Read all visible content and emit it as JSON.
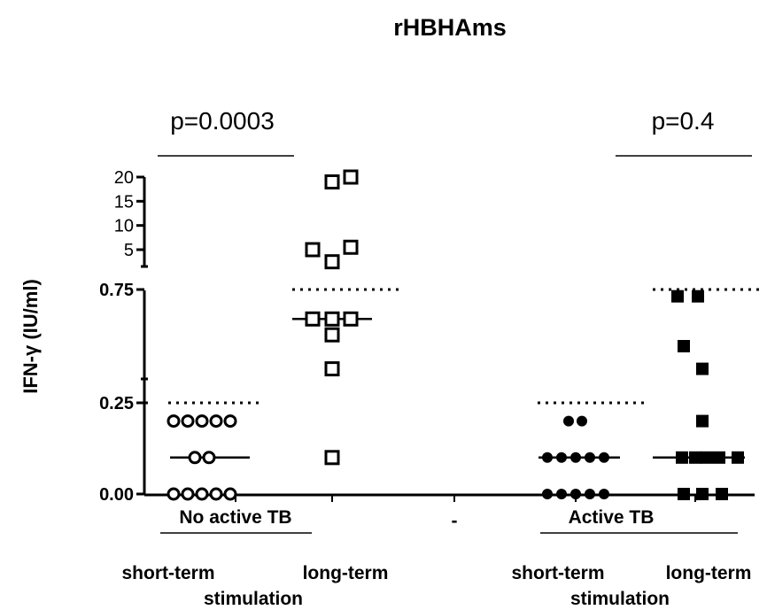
{
  "chart_data": {
    "type": "scatter",
    "title": "rHBHAms",
    "ylabel": "IFN-γ (IU/ml)",
    "y_axis_segments": [
      {
        "ticks": [
          "0.00",
          "0.25"
        ],
        "range": [
          0,
          0.25
        ]
      },
      {
        "ticks": [
          "0.75"
        ],
        "range": [
          0.25,
          0.75
        ]
      },
      {
        "ticks": [
          "5",
          "10",
          "15",
          "20"
        ],
        "range": [
          0,
          20
        ]
      }
    ],
    "groups": [
      {
        "label": "No active TB",
        "p_value": "p=0.0003",
        "conditions": [
          {
            "label": "short-term",
            "marker": "open-circle",
            "median": 0.1,
            "cutoff": 0.25,
            "values": [
              0.2,
              0.2,
              0.2,
              0.2,
              0.2,
              0.1,
              0.1,
              0.0,
              0.0,
              0.0,
              0.0,
              0.0
            ]
          },
          {
            "label": "long-term",
            "marker": "open-square",
            "median": 0.62,
            "cutoff": 0.75,
            "values": [
              20,
              19,
              5.5,
              5,
              2.5,
              0.62,
              0.62,
              0.62,
              0.55,
              0.4,
              0.1
            ]
          }
        ]
      },
      {
        "label": "Active TB",
        "p_value": "p=0.4",
        "conditions": [
          {
            "label": "short-term",
            "marker": "filled-circle",
            "median": 0.1,
            "cutoff": 0.25,
            "values": [
              0.2,
              0.2,
              0.1,
              0.1,
              0.1,
              0.1,
              0.1,
              0.0,
              0.0,
              0.0,
              0.0,
              0.0
            ]
          },
          {
            "label": "long-term",
            "marker": "filled-square",
            "median": 0.1,
            "cutoff": 0.75,
            "values": [
              0.72,
              0.72,
              0.5,
              0.4,
              0.2,
              0.1,
              0.1,
              0.1,
              0.1,
              0.1,
              0.0,
              0.0,
              0.0
            ]
          }
        ]
      }
    ],
    "x_labels": [
      "short-term",
      "long-term",
      "short-term",
      "long-term"
    ],
    "x_tick_center": "-",
    "stimulation_label": "stimulation"
  }
}
